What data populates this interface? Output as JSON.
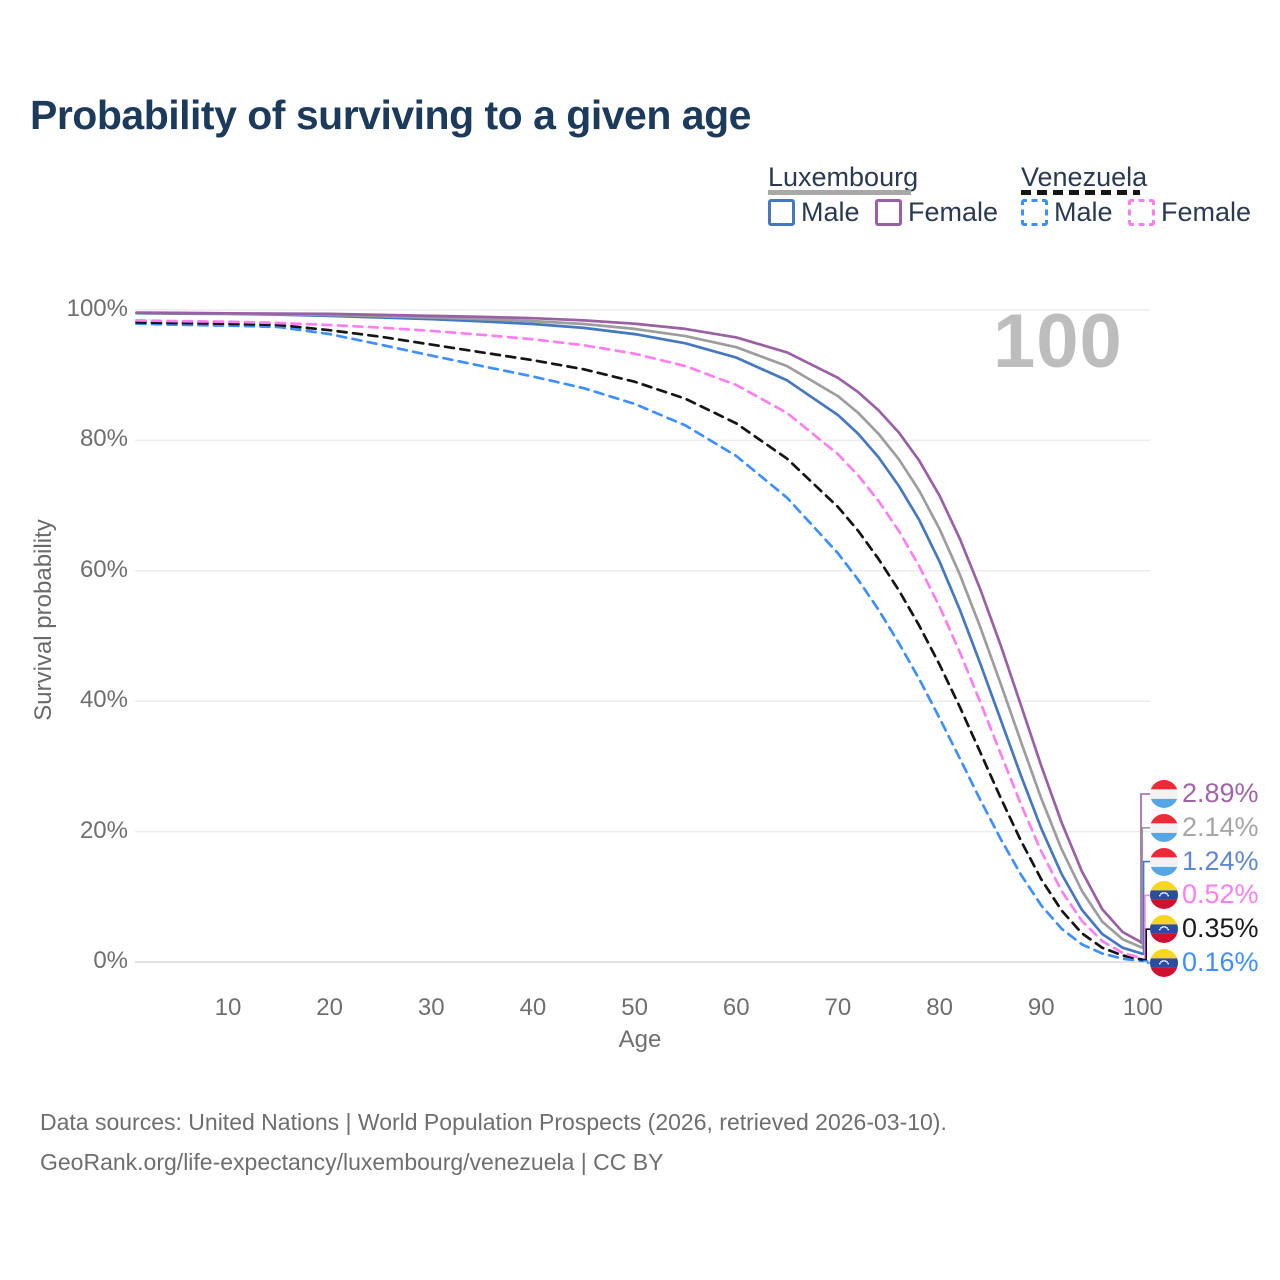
{
  "title": "Probability of surviving to a given age",
  "watermark": "100",
  "legend": {
    "groups": [
      {
        "country": "Luxembourg",
        "style": "solid",
        "underline_color": "#a8a8a8",
        "items": [
          {
            "label": "Male",
            "color": "#4678c0"
          },
          {
            "label": "Female",
            "color": "#9a60a4"
          }
        ]
      },
      {
        "country": "Venezuela",
        "style": "dashed",
        "underline_color": "#161616",
        "items": [
          {
            "label": "Male",
            "color": "#3f8ffd"
          },
          {
            "label": "Female",
            "color": "#fb7ff0"
          }
        ]
      }
    ]
  },
  "chart_data": {
    "type": "line",
    "title": "Probability of surviving to a given age",
    "xlabel": "Age",
    "ylabel": "Survival probability",
    "xlim": [
      1,
      100
    ],
    "ylim": [
      0,
      100
    ],
    "grid": "horizontal",
    "legend_position": "top-right",
    "xticks": [
      {
        "label": "10",
        "value": 10
      },
      {
        "label": "20",
        "value": 20
      },
      {
        "label": "30",
        "value": 30
      },
      {
        "label": "40",
        "value": 40
      },
      {
        "label": "50",
        "value": 50
      },
      {
        "label": "60",
        "value": 60
      },
      {
        "label": "70",
        "value": 70
      },
      {
        "label": "80",
        "value": 80
      },
      {
        "label": "90",
        "value": 90
      },
      {
        "label": "100",
        "value": 100
      }
    ],
    "yticks": [
      {
        "label": "100%",
        "value": 100
      },
      {
        "label": "80%",
        "value": 80
      },
      {
        "label": "60%",
        "value": 60
      },
      {
        "label": "40%",
        "value": 40
      },
      {
        "label": "20%",
        "value": 20
      },
      {
        "label": "0%",
        "value": 0
      }
    ],
    "series": [
      {
        "name": "Luxembourg Female",
        "country": "Luxembourg",
        "sex": "Female",
        "color": "#9a60a4",
        "dash": false,
        "flag": "luxembourg",
        "end_label": "2.89%",
        "end_value": 2.89,
        "end_label_color": "#a264a8",
        "points": [
          [
            1,
            99.6
          ],
          [
            5,
            99.55
          ],
          [
            10,
            99.5
          ],
          [
            15,
            99.45
          ],
          [
            20,
            99.4
          ],
          [
            25,
            99.25
          ],
          [
            30,
            99.1
          ],
          [
            35,
            98.95
          ],
          [
            40,
            98.75
          ],
          [
            45,
            98.4
          ],
          [
            50,
            97.9
          ],
          [
            55,
            97.1
          ],
          [
            60,
            95.8
          ],
          [
            65,
            93.5
          ],
          [
            70,
            89.6
          ],
          [
            72,
            87.4
          ],
          [
            74,
            84.6
          ],
          [
            76,
            81.2
          ],
          [
            78,
            76.9
          ],
          [
            80,
            71.5
          ],
          [
            82,
            64.9
          ],
          [
            84,
            57.2
          ],
          [
            86,
            48.6
          ],
          [
            88,
            39.4
          ],
          [
            90,
            30.1
          ],
          [
            92,
            21.4
          ],
          [
            94,
            13.9
          ],
          [
            96,
            8.1
          ],
          [
            98,
            4.6
          ],
          [
            100,
            2.89
          ]
        ]
      },
      {
        "name": "Luxembourg Both sexes",
        "country": "Luxembourg",
        "sex": "Both sexes",
        "color": "#9d9d9d",
        "dash": false,
        "flag": "luxembourg",
        "end_label": "2.14%",
        "end_value": 2.14,
        "end_label_color": "#a6a6a6",
        "points": [
          [
            1,
            99.55
          ],
          [
            5,
            99.5
          ],
          [
            10,
            99.45
          ],
          [
            15,
            99.35
          ],
          [
            20,
            99.25
          ],
          [
            25,
            99.05
          ],
          [
            30,
            98.85
          ],
          [
            35,
            98.6
          ],
          [
            40,
            98.3
          ],
          [
            45,
            97.85
          ],
          [
            50,
            97.1
          ],
          [
            55,
            96.0
          ],
          [
            60,
            94.3
          ],
          [
            65,
            91.4
          ],
          [
            70,
            86.8
          ],
          [
            72,
            84.2
          ],
          [
            74,
            81.0
          ],
          [
            76,
            77.1
          ],
          [
            78,
            72.3
          ],
          [
            80,
            66.4
          ],
          [
            82,
            59.4
          ],
          [
            84,
            51.4
          ],
          [
            86,
            42.7
          ],
          [
            88,
            33.8
          ],
          [
            90,
            25.1
          ],
          [
            92,
            17.3
          ],
          [
            94,
            10.9
          ],
          [
            96,
            6.2
          ],
          [
            98,
            3.5
          ],
          [
            100,
            2.14
          ]
        ]
      },
      {
        "name": "Luxembourg Male",
        "country": "Luxembourg",
        "sex": "Male",
        "color": "#4678c0",
        "dash": false,
        "flag": "luxembourg",
        "end_label": "1.24%",
        "end_value": 1.24,
        "end_label_color": "#6188cc",
        "points": [
          [
            1,
            99.5
          ],
          [
            5,
            99.45
          ],
          [
            10,
            99.4
          ],
          [
            15,
            99.3
          ],
          [
            20,
            99.1
          ],
          [
            25,
            98.85
          ],
          [
            30,
            98.6
          ],
          [
            35,
            98.25
          ],
          [
            40,
            97.85
          ],
          [
            45,
            97.25
          ],
          [
            50,
            96.3
          ],
          [
            55,
            94.9
          ],
          [
            60,
            92.7
          ],
          [
            65,
            89.2
          ],
          [
            70,
            83.9
          ],
          [
            72,
            81.0
          ],
          [
            74,
            77.4
          ],
          [
            76,
            73.0
          ],
          [
            78,
            67.8
          ],
          [
            80,
            61.4
          ],
          [
            82,
            54.0
          ],
          [
            84,
            45.8
          ],
          [
            86,
            37.2
          ],
          [
            88,
            28.6
          ],
          [
            90,
            20.5
          ],
          [
            92,
            13.5
          ],
          [
            94,
            8.0
          ],
          [
            96,
            4.3
          ],
          [
            98,
            2.2
          ],
          [
            100,
            1.24
          ]
        ]
      },
      {
        "name": "Venezuela Female",
        "country": "Venezuela",
        "sex": "Female",
        "color": "#fb7ff0",
        "dash": true,
        "flag": "venezuela",
        "end_label": "0.52%",
        "end_value": 0.52,
        "end_label_color": "#fb7ff0",
        "points": [
          [
            1,
            98.4
          ],
          [
            5,
            98.3
          ],
          [
            10,
            98.2
          ],
          [
            15,
            98.0
          ],
          [
            20,
            97.7
          ],
          [
            25,
            97.3
          ],
          [
            30,
            96.8
          ],
          [
            35,
            96.2
          ],
          [
            40,
            95.5
          ],
          [
            45,
            94.6
          ],
          [
            50,
            93.3
          ],
          [
            55,
            91.4
          ],
          [
            60,
            88.5
          ],
          [
            65,
            84.2
          ],
          [
            70,
            77.9
          ],
          [
            72,
            74.6
          ],
          [
            74,
            70.7
          ],
          [
            76,
            66.1
          ],
          [
            78,
            60.7
          ],
          [
            80,
            54.5
          ],
          [
            82,
            47.5
          ],
          [
            84,
            39.9
          ],
          [
            86,
            32.0
          ],
          [
            88,
            24.2
          ],
          [
            90,
            17.0
          ],
          [
            92,
            10.9
          ],
          [
            94,
            6.3
          ],
          [
            96,
            3.2
          ],
          [
            98,
            1.4
          ],
          [
            100,
            0.52
          ]
        ]
      },
      {
        "name": "Venezuela Both sexes",
        "country": "Venezuela",
        "sex": "Both sexes",
        "color": "#151515",
        "dash": true,
        "flag": "venezuela",
        "end_label": "0.35%",
        "end_value": 0.35,
        "end_label_color": "#1a1a1a",
        "points": [
          [
            1,
            98.1
          ],
          [
            5,
            98.0
          ],
          [
            10,
            97.9
          ],
          [
            15,
            97.7
          ],
          [
            20,
            96.9
          ],
          [
            25,
            95.9
          ],
          [
            30,
            94.7
          ],
          [
            35,
            93.5
          ],
          [
            40,
            92.3
          ],
          [
            45,
            90.9
          ],
          [
            50,
            89.0
          ],
          [
            55,
            86.4
          ],
          [
            60,
            82.6
          ],
          [
            65,
            77.2
          ],
          [
            70,
            69.8
          ],
          [
            72,
            66.1
          ],
          [
            74,
            61.8
          ],
          [
            76,
            57.0
          ],
          [
            78,
            51.6
          ],
          [
            80,
            45.6
          ],
          [
            82,
            39.1
          ],
          [
            84,
            32.2
          ],
          [
            86,
            25.2
          ],
          [
            88,
            18.6
          ],
          [
            90,
            12.7
          ],
          [
            92,
            7.9
          ],
          [
            94,
            4.4
          ],
          [
            96,
            2.2
          ],
          [
            98,
            1.0
          ],
          [
            100,
            0.35
          ]
        ]
      },
      {
        "name": "Venezuela Male",
        "country": "Venezuela",
        "sex": "Male",
        "color": "#3f8ffd",
        "dash": true,
        "flag": "venezuela",
        "end_label": "0.16%",
        "end_value": 0.16,
        "end_label_color": "#3f8ffd",
        "points": [
          [
            1,
            97.9
          ],
          [
            5,
            97.75
          ],
          [
            10,
            97.6
          ],
          [
            15,
            97.4
          ],
          [
            20,
            96.3
          ],
          [
            25,
            94.7
          ],
          [
            30,
            93.0
          ],
          [
            35,
            91.4
          ],
          [
            40,
            89.8
          ],
          [
            45,
            88.0
          ],
          [
            50,
            85.6
          ],
          [
            55,
            82.3
          ],
          [
            60,
            77.6
          ],
          [
            65,
            71.2
          ],
          [
            70,
            62.7
          ],
          [
            72,
            58.6
          ],
          [
            74,
            54.0
          ],
          [
            76,
            48.9
          ],
          [
            78,
            43.4
          ],
          [
            80,
            37.4
          ],
          [
            82,
            31.2
          ],
          [
            84,
            24.9
          ],
          [
            86,
            18.9
          ],
          [
            88,
            13.4
          ],
          [
            90,
            8.7
          ],
          [
            92,
            5.1
          ],
          [
            94,
            2.7
          ],
          [
            96,
            1.3
          ],
          [
            98,
            0.5
          ],
          [
            100,
            0.16
          ]
        ]
      }
    ]
  },
  "flag_colors": {
    "luxembourg": {
      "top": "#ee2a39",
      "middle": "#f2f2f2",
      "bottom": "#55a6e4"
    },
    "venezuela": {
      "top": "#f7d71e",
      "middle": "#2b4da0",
      "bottom": "#d01031",
      "stars": "#ffffff"
    }
  },
  "source": {
    "line1": "Data sources: United Nations | World Population Prospects (2026, retrieved 2026-03-10).",
    "line2": "GeoRank.org/life-expectancy/luxembourg/venezuela | CC BY"
  }
}
